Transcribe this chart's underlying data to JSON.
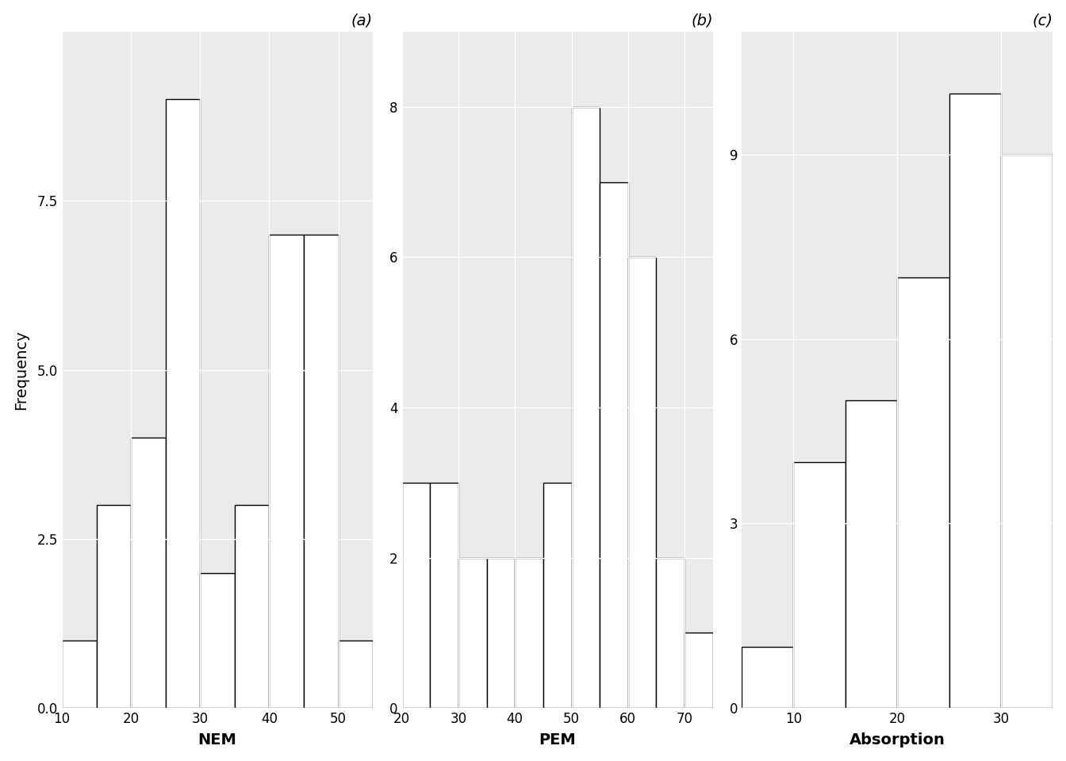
{
  "nem_bins": [
    10,
    15,
    20,
    25,
    30,
    35,
    40,
    45,
    50,
    55
  ],
  "nem_counts": [
    1,
    3,
    4,
    9,
    2,
    3,
    7,
    7,
    1
  ],
  "nem_xlabel": "NEM",
  "nem_ylim": [
    0,
    10.0
  ],
  "nem_yticks": [
    0.0,
    2.5,
    5.0,
    7.5
  ],
  "nem_xticks": [
    10,
    20,
    30,
    40,
    50
  ],
  "nem_title": "(a)",
  "pem_bins": [
    20,
    25,
    30,
    35,
    40,
    45,
    50,
    55,
    60,
    65,
    70,
    75
  ],
  "pem_counts": [
    3,
    3,
    2,
    2,
    2,
    3,
    8,
    7,
    6,
    2,
    1
  ],
  "pem_xlabel": "PEM",
  "pem_ylim": [
    0,
    9.0
  ],
  "pem_yticks": [
    0,
    2,
    4,
    6,
    8
  ],
  "pem_xticks": [
    20,
    30,
    40,
    50,
    60,
    70
  ],
  "pem_title": "(b)",
  "abs_bins": [
    5,
    10,
    15,
    20,
    25,
    30,
    35
  ],
  "abs_counts": [
    1,
    4,
    5,
    7,
    10,
    9
  ],
  "abs_xlabel": "Absorption",
  "abs_ylim": [
    0,
    11.0
  ],
  "abs_yticks": [
    0,
    3,
    6,
    9
  ],
  "abs_xticks": [
    10,
    20,
    30
  ],
  "abs_title": "(c)",
  "ylabel": "Frequency",
  "panel_bg_color": "#ebebeb",
  "fig_bg_color": "#ffffff",
  "bar_facecolor": "white",
  "bar_edgecolor": "black",
  "grid_color": "white",
  "grid_linewidth": 1.0,
  "bar_linewidth": 1.0,
  "tick_labelsize": 12,
  "axis_labelsize": 14,
  "title_fontsize": 14
}
